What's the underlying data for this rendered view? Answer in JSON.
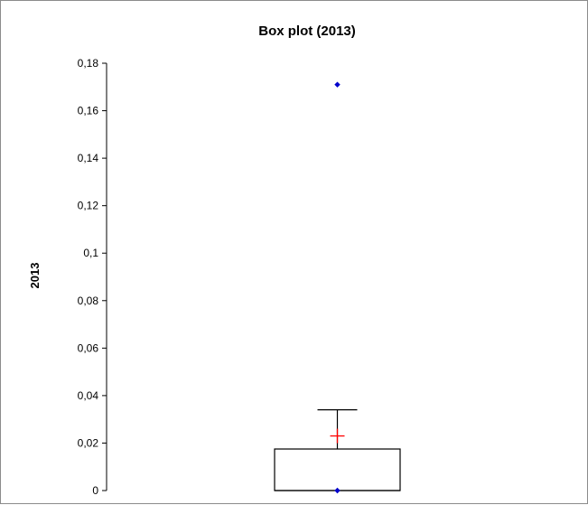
{
  "chart_data": {
    "type": "box",
    "title": "Box plot (2013)",
    "xlabel": "",
    "ylabel": "2013",
    "ylim": [
      0,
      0.18
    ],
    "yticks": [
      0,
      0.02,
      0.04,
      0.06,
      0.08,
      0.1,
      0.12,
      0.14,
      0.16,
      0.18
    ],
    "ytick_labels": [
      "0",
      "0,02",
      "0,04",
      "0,06",
      "0,08",
      "0,1",
      "0,12",
      "0,14",
      "0,16",
      "0,18"
    ],
    "grid": false,
    "legend": "none",
    "series": [
      {
        "min": 0,
        "q1": 0,
        "median": 0,
        "q3": 0.0175,
        "whisker_high": 0.034,
        "mean": 0.023,
        "outliers": [
          0.171,
          0
        ]
      }
    ],
    "colors": {
      "box": "#000000",
      "mean_marker": "#ff0000",
      "outlier_marker": "#0000cc",
      "frame": "#8c8c8c"
    }
  }
}
